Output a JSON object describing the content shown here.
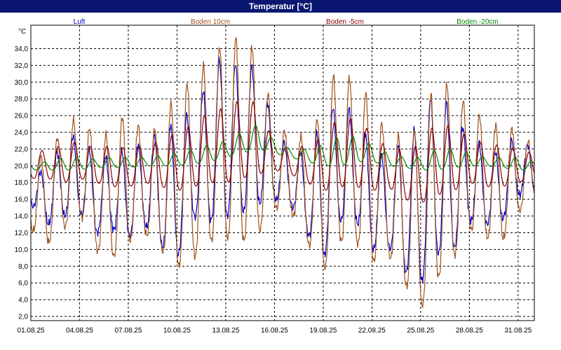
{
  "window": {
    "title": "Temperatur [°C]"
  },
  "chart_data": {
    "type": "line",
    "title": "Temperatur [°C]",
    "ylabel": "°C",
    "xlabel": "",
    "ylim": [
      1.5,
      36.8
    ],
    "grid": true,
    "legend_position": "top",
    "y_ticks": [
      "2,0",
      "4,0",
      "6,0",
      "8,0",
      "10,0",
      "12,0",
      "14,0",
      "16,0",
      "18,0",
      "20,0",
      "22,0",
      "24,0",
      "26,0",
      "28,0",
      "30,0",
      "32,0",
      "34,0"
    ],
    "x_ticks": [
      "01.08.25",
      "04.08.25",
      "07.08.25",
      "10.08.25",
      "13.08.25",
      "16.08.25",
      "19.08.25",
      "22.08.25",
      "25.08.25",
      "28.08.25",
      "31.08.25"
    ],
    "x_range_days": [
      1,
      32
    ],
    "days": [
      1,
      2,
      3,
      4,
      5,
      6,
      7,
      8,
      9,
      10,
      11,
      12,
      13,
      14,
      15,
      16,
      17,
      18,
      19,
      20,
      21,
      22,
      23,
      24,
      25,
      26,
      27,
      28,
      29,
      30,
      31,
      32
    ],
    "series": [
      {
        "name": "Luft",
        "color": "#0000cc",
        "daily_min": [
          15.5,
          13.0,
          14.0,
          14.5,
          12.0,
          12.5,
          11.5,
          13.0,
          10.5,
          9.0,
          14.0,
          13.5,
          14.0,
          14.5,
          15.5,
          16.0,
          15.5,
          12.0,
          9.0,
          13.5,
          13.5,
          10.0,
          10.5,
          7.5,
          6.0,
          9.5,
          10.0,
          13.5,
          13.0,
          13.5,
          16.5,
          17.0
        ],
        "daily_max": [
          19.0,
          19.5,
          23.0,
          24.0,
          20.5,
          21.5,
          22.0,
          23.0,
          24.0,
          25.5,
          26.5,
          30.5,
          34.0,
          31.0,
          32.5,
          24.0,
          22.0,
          21.5,
          25.5,
          28.0,
          26.0,
          22.5,
          20.5,
          24.0,
          24.5,
          30.5,
          25.5,
          24.0,
          22.0,
          21.5,
          24.0,
          21.5
        ]
      },
      {
        "name": "Boden 10cm",
        "color": "#a0521e",
        "daily_min": [
          12.5,
          10.7,
          12.5,
          14.5,
          10.0,
          9.0,
          11.0,
          12.0,
          10.0,
          8.0,
          9.0,
          11.0,
          11.5,
          11.0,
          12.0,
          15.0,
          14.5,
          11.0,
          7.5,
          11.0,
          11.0,
          8.5,
          9.5,
          6.0,
          3.0,
          6.5,
          9.0,
          12.5,
          11.5,
          11.0,
          14.5,
          16.0
        ],
        "daily_max": [
          20.5,
          21.5,
          24.5,
          26.0,
          23.5,
          24.0,
          27.0,
          23.5,
          25.0,
          29.0,
          30.5,
          33.0,
          35.0,
          35.5,
          33.5,
          25.5,
          23.5,
          23.5,
          27.0,
          33.0,
          29.0,
          28.5,
          23.0,
          24.0,
          24.5,
          31.0,
          29.0,
          27.0,
          25.5,
          24.5,
          24.5,
          22.0
        ]
      },
      {
        "name": "Boden -5cm",
        "color": "#8b0000",
        "daily_min": [
          18.5,
          18.5,
          18.0,
          18.5,
          18.0,
          17.5,
          17.5,
          18.0,
          17.5,
          17.0,
          17.5,
          18.0,
          18.0,
          18.5,
          19.0,
          19.5,
          19.0,
          18.0,
          17.0,
          17.5,
          17.5,
          17.0,
          17.5,
          16.0,
          15.5,
          16.5,
          17.0,
          18.0,
          17.5,
          17.5,
          18.0,
          18.5
        ],
        "daily_max": [
          21.5,
          22.0,
          22.5,
          23.0,
          22.0,
          22.5,
          22.0,
          22.5,
          23.0,
          24.0,
          25.0,
          26.5,
          27.0,
          28.0,
          27.5,
          22.5,
          22.0,
          22.5,
          23.5,
          26.0,
          25.5,
          24.0,
          22.0,
          22.0,
          22.5,
          25.5,
          24.5,
          23.5,
          22.5,
          22.5,
          22.0,
          21.5
        ]
      },
      {
        "name": "Boden -20cm",
        "color": "#008800",
        "daily_min": [
          19.5,
          19.5,
          19.5,
          19.5,
          19.8,
          19.8,
          19.8,
          20.0,
          20.0,
          20.0,
          20.2,
          20.5,
          21.0,
          21.5,
          22.0,
          21.5,
          21.0,
          20.5,
          20.0,
          20.0,
          20.5,
          20.5,
          20.0,
          19.8,
          19.5,
          19.5,
          19.8,
          20.0,
          20.0,
          19.8,
          19.5,
          19.5
        ],
        "daily_max": [
          20.3,
          20.5,
          21.0,
          21.0,
          20.8,
          21.0,
          21.0,
          21.0,
          21.2,
          21.5,
          22.0,
          22.5,
          23.0,
          24.0,
          25.0,
          23.0,
          22.0,
          22.0,
          22.5,
          23.5,
          23.5,
          22.5,
          21.5,
          21.0,
          21.0,
          22.0,
          22.0,
          21.5,
          21.0,
          21.0,
          21.0,
          20.5
        ]
      }
    ]
  }
}
